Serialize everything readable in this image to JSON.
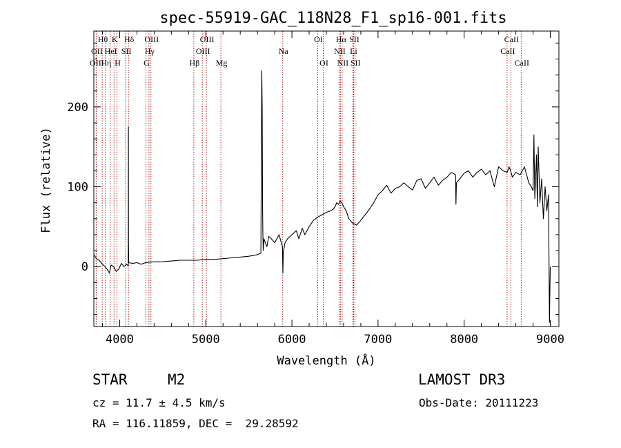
{
  "chart_data": {
    "type": "line",
    "title": "spec-55919-GAC_118N28_F1_sp16-001.fits",
    "xlabel": "Wavelength (Å)",
    "ylabel": "Flux (relative)",
    "xlim": [
      3700,
      9100
    ],
    "ylim": [
      -75,
      295
    ],
    "xticks": [
      4000,
      5000,
      6000,
      7000,
      8000,
      9000
    ],
    "yticks": [
      0,
      100,
      200
    ],
    "series": [
      {
        "name": "spectrum",
        "x": [
          3700,
          3730,
          3760,
          3800,
          3830,
          3860,
          3880,
          3900,
          3930,
          3960,
          3990,
          4020,
          4050,
          4080,
          4100,
          4101,
          4102,
          4105,
          4150,
          4200,
          4250,
          4300,
          4400,
          4500,
          4600,
          4700,
          4800,
          4900,
          5000,
          5100,
          5200,
          5300,
          5400,
          5500,
          5600,
          5640,
          5650,
          5655,
          5660,
          5663,
          5667,
          5675,
          5690,
          5710,
          5730,
          5760,
          5800,
          5850,
          5890,
          5895,
          5900,
          5920,
          5950,
          6000,
          6050,
          6080,
          6120,
          6150,
          6200,
          6250,
          6300,
          6350,
          6400,
          6450,
          6480,
          6500,
          6520,
          6540,
          6560,
          6580,
          6600,
          6630,
          6660,
          6700,
          6750,
          6800,
          6850,
          6900,
          6950,
          7000,
          7050,
          7100,
          7150,
          7200,
          7250,
          7300,
          7350,
          7400,
          7450,
          7500,
          7550,
          7600,
          7650,
          7700,
          7750,
          7800,
          7850,
          7900,
          7905,
          7910,
          7950,
          8000,
          8050,
          8100,
          8150,
          8200,
          8250,
          8300,
          8350,
          8400,
          8450,
          8500,
          8520,
          8540,
          8560,
          8600,
          8650,
          8700,
          8750,
          8780,
          8800,
          8810,
          8820,
          8840,
          8850,
          8860,
          8880,
          8900,
          8920,
          8940,
          8960,
          8980,
          8990,
          9000
        ],
        "y": [
          15,
          10,
          8,
          3,
          0,
          -4,
          -8,
          2,
          0,
          -6,
          -3,
          4,
          0,
          3,
          1,
          175,
          30,
          5,
          4,
          5,
          3,
          5,
          6,
          6,
          7,
          8,
          8,
          8,
          9,
          9,
          10,
          11,
          12,
          13,
          15,
          17,
          245,
          200,
          70,
          40,
          20,
          35,
          30,
          25,
          38,
          35,
          30,
          40,
          25,
          -8,
          18,
          30,
          35,
          40,
          45,
          35,
          48,
          40,
          50,
          58,
          62,
          65,
          68,
          70,
          72,
          75,
          80,
          78,
          82,
          80,
          75,
          70,
          60,
          55,
          52,
          58,
          65,
          72,
          80,
          90,
          95,
          102,
          92,
          98,
          100,
          105,
          100,
          96,
          108,
          110,
          98,
          105,
          112,
          102,
          108,
          112,
          118,
          115,
          78,
          105,
          110,
          117,
          120,
          112,
          118,
          122,
          115,
          120,
          100,
          125,
          120,
          118,
          125,
          120,
          112,
          118,
          115,
          125,
          105,
          100,
          95,
          165,
          85,
          140,
          75,
          150,
          80,
          110,
          60,
          100,
          70,
          90,
          -70,
          0
        ]
      }
    ],
    "spectral_lines": [
      {
        "label": "Hθ",
        "wavelength": 3797,
        "row": 1
      },
      {
        "label": "OII",
        "wavelength": 3727,
        "row": 2
      },
      {
        "label": "OIII",
        "wavelength": 3727,
        "row": 3
      },
      {
        "label": "K",
        "wavelength": 3934,
        "row": 1
      },
      {
        "label": "HeI",
        "wavelength": 3889,
        "row": 2
      },
      {
        "label": "Hη",
        "wavelength": 3835,
        "row": 3
      },
      {
        "label": "SII",
        "wavelength": 4069,
        "row": 2
      },
      {
        "label": "H",
        "wavelength": 3969,
        "row": 3
      },
      {
        "label": "Hδ",
        "wavelength": 4102,
        "row": 1
      },
      {
        "label": "OIII",
        "wavelength": 4363,
        "row": 1
      },
      {
        "label": "Hγ",
        "wavelength": 4340,
        "row": 2
      },
      {
        "label": "G",
        "wavelength": 4305,
        "row": 3
      },
      {
        "label": "OIII",
        "wavelength": 5007,
        "row": 1
      },
      {
        "label": "OIII",
        "wavelength": 4959,
        "row": 2
      },
      {
        "label": "Hβ",
        "wavelength": 4861,
        "row": 3
      },
      {
        "label": "Mg",
        "wavelength": 5175,
        "row": 3
      },
      {
        "label": "Na",
        "wavelength": 5893,
        "row": 2
      },
      {
        "label": "OI",
        "wavelength": 6300,
        "row": 1
      },
      {
        "label": "OI",
        "wavelength": 6364,
        "row": 3
      },
      {
        "label": "Hα",
        "wavelength": 6563,
        "row": 1
      },
      {
        "label": "SII",
        "wavelength": 6716,
        "row": 1
      },
      {
        "label": "NII",
        "wavelength": 6548,
        "row": 2
      },
      {
        "label": "Li",
        "wavelength": 6708,
        "row": 2
      },
      {
        "label": "NII",
        "wavelength": 6583,
        "row": 3
      },
      {
        "label": "SII",
        "wavelength": 6731,
        "row": 3
      },
      {
        "label": "CaII",
        "wavelength": 8542,
        "row": 1
      },
      {
        "label": "CaII",
        "wavelength": 8498,
        "row": 2
      },
      {
        "label": "CaII",
        "wavelength": 8662,
        "row": 3
      }
    ]
  },
  "info": {
    "object_class": "STAR",
    "subclass": "M2",
    "survey": "LAMOST DR3",
    "cz": "cz = 11.7 ± 4.5 km/s",
    "obs_date": "Obs-Date: 20111223",
    "coords": "RA = 116.11859, DEC =  29.28592"
  }
}
